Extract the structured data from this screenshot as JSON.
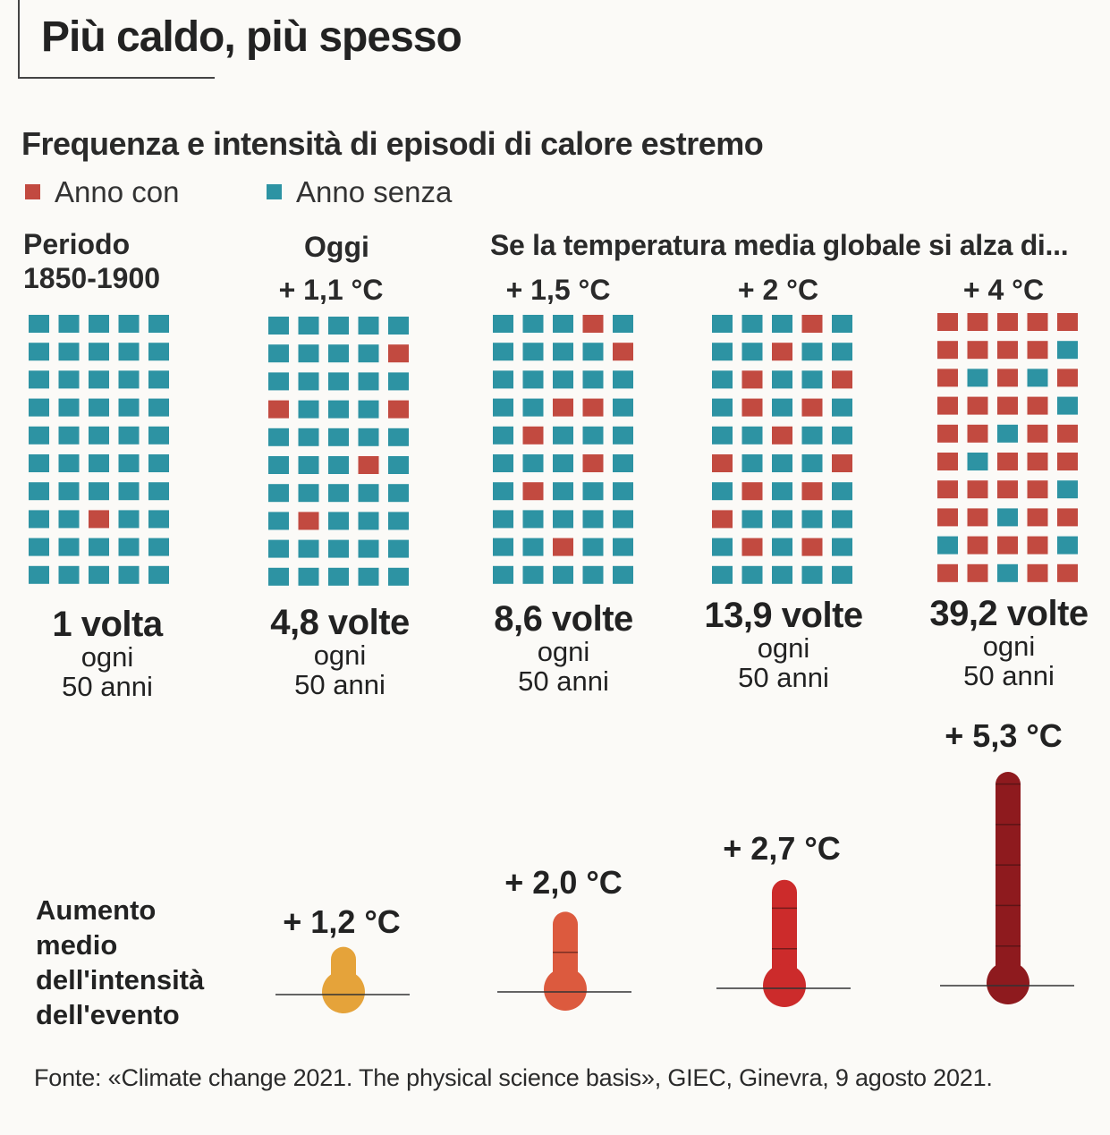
{
  "title": "Più caldo, più spesso",
  "chart_data": {
    "type": "waffle",
    "title": "Frequenza e intensità di episodi di calore estremo",
    "legend": [
      {
        "label": "Anno con",
        "color": "#c24a40"
      },
      {
        "label": "Anno senza",
        "color": "#2d93a3"
      }
    ],
    "period_label": "Periodo\n1850-1900",
    "today_label": "Oggi",
    "scenario_label": "Se la temperatura media globale si alza di...",
    "grid": {
      "rows": 10,
      "cols": 5
    },
    "panels": [
      {
        "warming": "",
        "frequency": "1 volta",
        "per_label": "ogni",
        "period": "50 anni",
        "events_per_50_years": 1,
        "hot_cells": [
          [
            7,
            2
          ]
        ]
      },
      {
        "warming": "+ 1,1 °C",
        "frequency": "4,8 volte",
        "per_label": "ogni",
        "period": "50 anni",
        "events_per_50_years": 4.8,
        "hot_cells": [
          [
            1,
            4
          ],
          [
            3,
            0
          ],
          [
            3,
            4
          ],
          [
            5,
            3
          ],
          [
            7,
            1
          ]
        ]
      },
      {
        "warming": "+ 1,5 °C",
        "frequency": "8,6 volte",
        "per_label": "ogni",
        "period": "50 anni",
        "events_per_50_years": 8.6,
        "hot_cells": [
          [
            0,
            3
          ],
          [
            1,
            4
          ],
          [
            3,
            2
          ],
          [
            3,
            3
          ],
          [
            4,
            1
          ],
          [
            5,
            3
          ],
          [
            6,
            1
          ],
          [
            8,
            2
          ]
        ]
      },
      {
        "warming": "+ 2 °C",
        "frequency": "13,9 volte",
        "per_label": "ogni",
        "period": "50 anni",
        "events_per_50_years": 13.9,
        "hot_cells": [
          [
            0,
            3
          ],
          [
            1,
            2
          ],
          [
            2,
            1
          ],
          [
            2,
            4
          ],
          [
            3,
            1
          ],
          [
            3,
            3
          ],
          [
            4,
            2
          ],
          [
            5,
            0
          ],
          [
            5,
            4
          ],
          [
            6,
            1
          ],
          [
            6,
            3
          ],
          [
            7,
            0
          ],
          [
            8,
            1
          ],
          [
            8,
            3
          ]
        ]
      },
      {
        "warming": "+ 4 °C",
        "frequency": "39,2 volte",
        "per_label": "ogni",
        "period": "50 anni",
        "events_per_50_years": 39.2,
        "cold_cells": [
          [
            1,
            4
          ],
          [
            2,
            1
          ],
          [
            2,
            3
          ],
          [
            3,
            4
          ],
          [
            4,
            2
          ],
          [
            5,
            1
          ],
          [
            6,
            4
          ],
          [
            7,
            2
          ],
          [
            8,
            0
          ],
          [
            8,
            4
          ],
          [
            9,
            2
          ]
        ]
      }
    ],
    "intensity": {
      "label": "Aumento\nmedio\ndell'intensità\ndell'evento",
      "unit": "°C",
      "values": [
        {
          "label": "+ 1,2 °C",
          "value": 1.2,
          "color": "#e5a33a"
        },
        {
          "label": "+ 2,0 °C",
          "value": 2.0,
          "color": "#dc5a3e"
        },
        {
          "label": "+ 2,7 °C",
          "value": 2.7,
          "color": "#cc2b2b"
        },
        {
          "label": "+ 5,3 °C",
          "value": 5.3,
          "color": "#8e1a1e"
        }
      ]
    },
    "colors": {
      "hot": "#c24a40",
      "cold": "#2d93a3"
    }
  },
  "source": "Fonte: «Climate change 2021. The physical science basis», GIEC, Ginevra, 9 agosto 2021."
}
